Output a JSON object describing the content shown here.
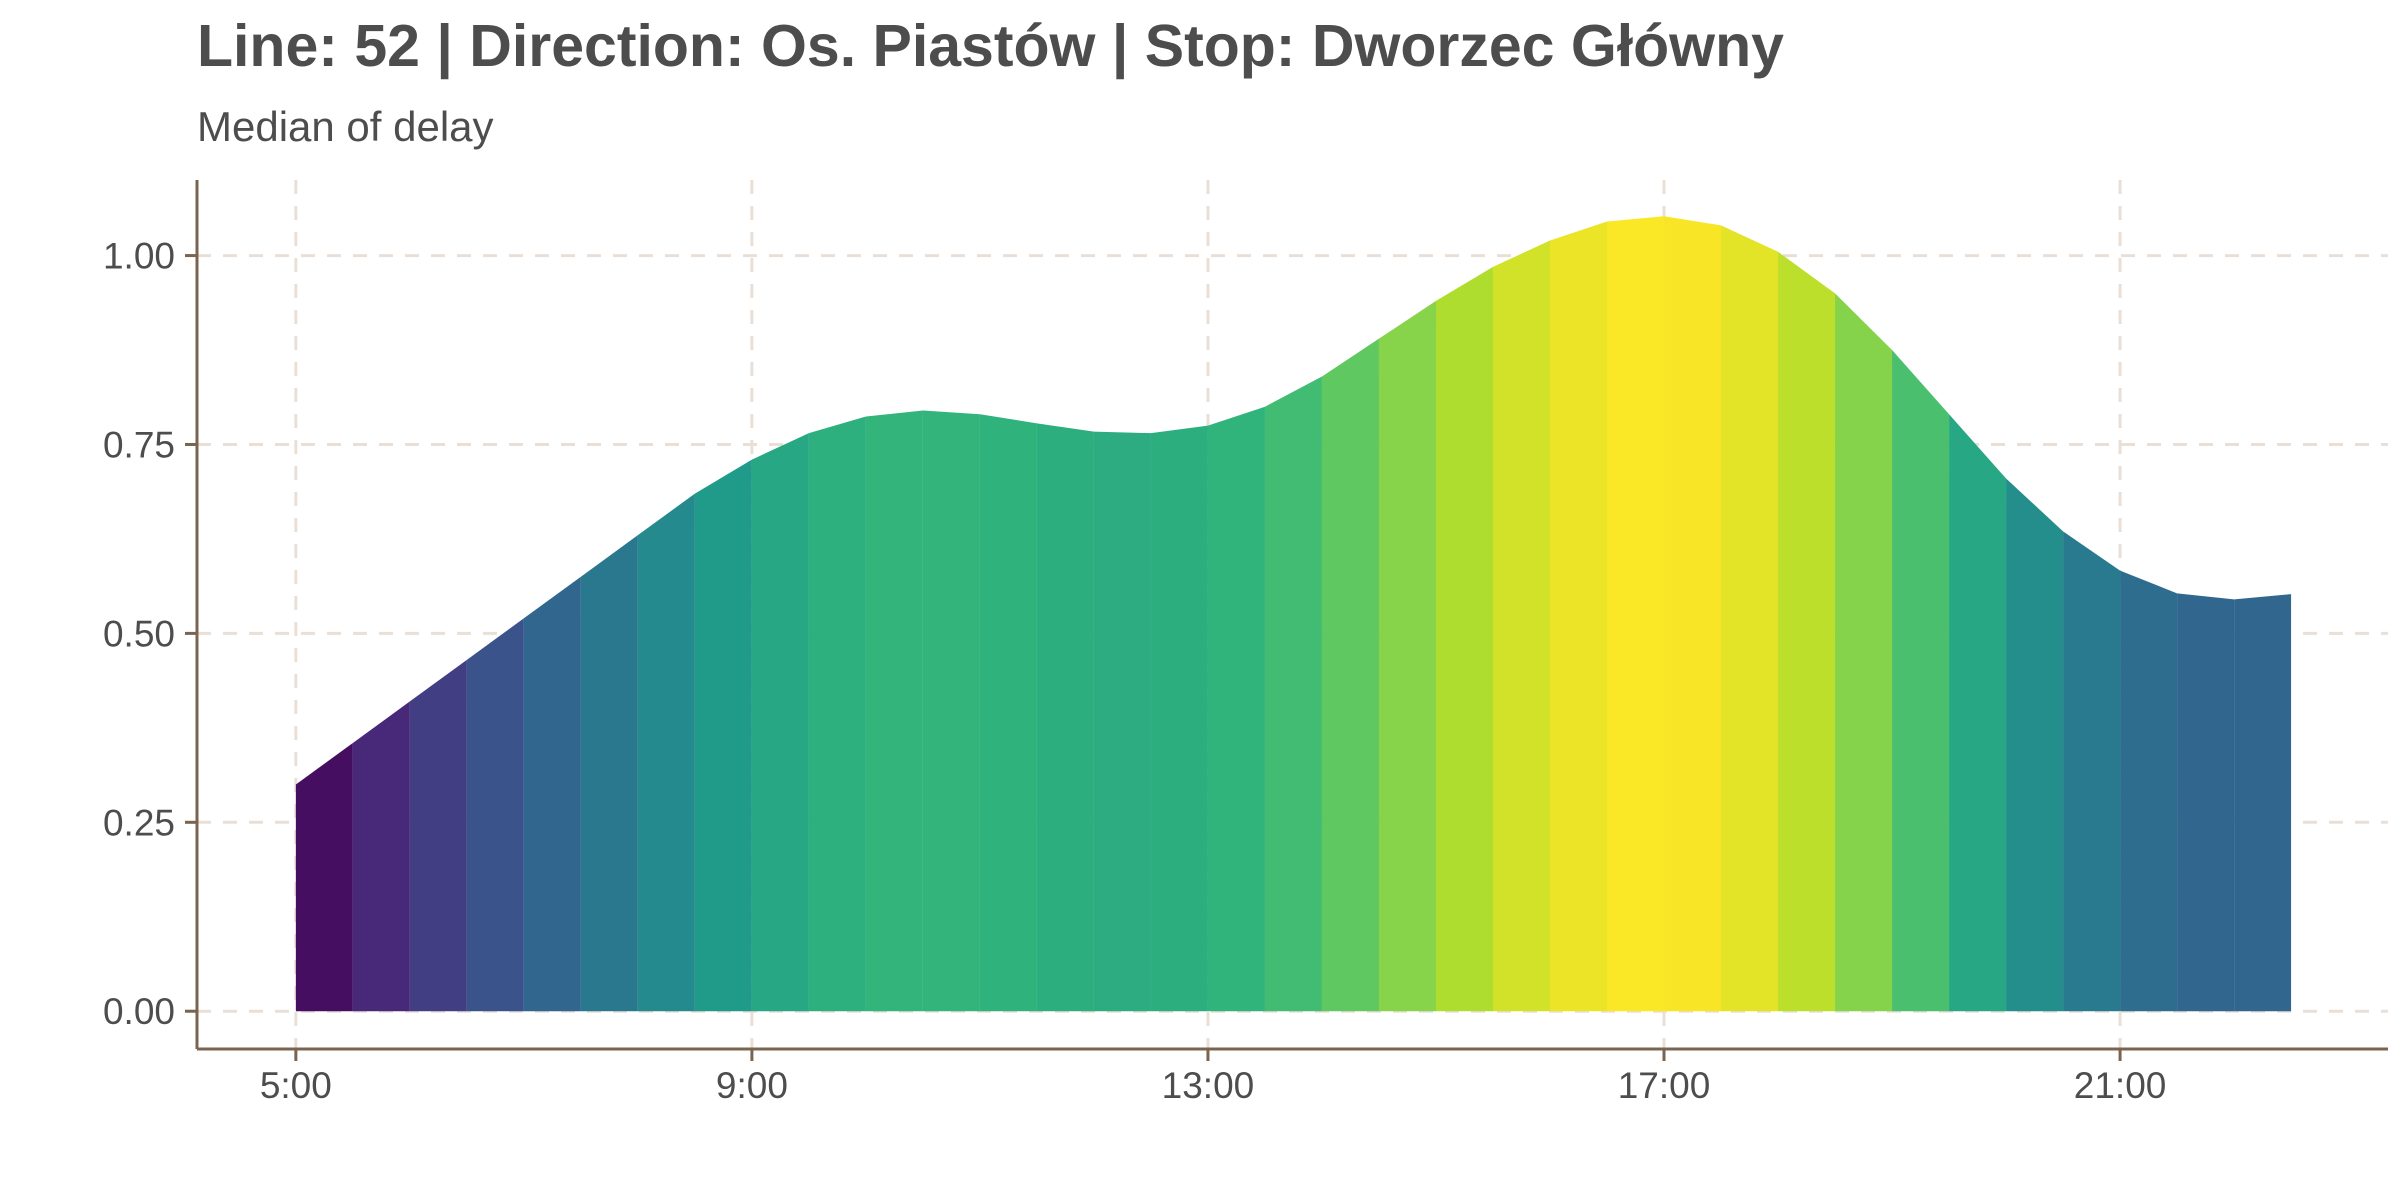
{
  "chart_data": {
    "type": "area",
    "title": "Line: 52 | Direction: Os. Piastów | Stop: Dworzec Główny",
    "subtitle": "Median of delay",
    "xlabel": "",
    "ylabel": "",
    "x_unit": "hour of day",
    "xlim": [
      4.133,
      23.35
    ],
    "ylim": [
      -0.05,
      1.1
    ],
    "x_ticks": [
      {
        "value": 5,
        "label": "5:00"
      },
      {
        "value": 9,
        "label": "9:00"
      },
      {
        "value": 13,
        "label": "13:00"
      },
      {
        "value": 17,
        "label": "17:00"
      },
      {
        "value": 21,
        "label": "21:00"
      }
    ],
    "y_ticks": [
      {
        "value": 0,
        "label": "0.00"
      },
      {
        "value": 0.25,
        "label": "0.25"
      },
      {
        "value": 0.5,
        "label": "0.50"
      },
      {
        "value": 0.75,
        "label": "0.75"
      },
      {
        "value": 1.0,
        "label": "1.00"
      }
    ],
    "grid": true,
    "fill": "viridis colour scale mapped to value",
    "x": [
      5,
      5.5,
      6,
      6.5,
      7,
      7.5,
      8,
      8.5,
      9,
      9.5,
      10,
      10.5,
      11,
      11.5,
      12,
      12.5,
      13,
      13.5,
      14,
      14.5,
      15,
      15.5,
      16,
      16.5,
      17,
      17.5,
      18,
      18.5,
      19,
      19.5,
      20,
      20.5,
      21,
      21.5,
      22,
      22.5
    ],
    "values": [
      0.3,
      0.355,
      0.41,
      0.465,
      0.52,
      0.575,
      0.63,
      0.685,
      0.73,
      0.765,
      0.787,
      0.795,
      0.79,
      0.778,
      0.767,
      0.765,
      0.775,
      0.8,
      0.84,
      0.89,
      0.94,
      0.985,
      1.02,
      1.045,
      1.052,
      1.04,
      1.005,
      0.95,
      0.875,
      0.79,
      0.705,
      0.635,
      0.583,
      0.553,
      0.545,
      0.552
    ]
  }
}
